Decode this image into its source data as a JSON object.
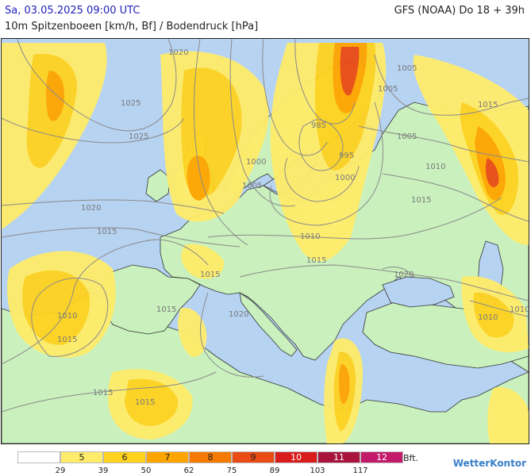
{
  "header": {
    "date": "Sa, 03.05.2025 09:00 UTC",
    "model": "GFS (NOAA) Do 18 + 39h",
    "subtitle": "10m Spitzenboeen [km/h, Bf] / Bodendruck [hPa]"
  },
  "colors": {
    "sea": "#b7d3f2",
    "land": "#c9f0bd",
    "calm": "#ffffff"
  },
  "legend": {
    "bins": [
      {
        "label": "",
        "color": "#ffffff"
      },
      {
        "label": "5",
        "color": "#ffec6a"
      },
      {
        "label": "6",
        "color": "#ffd21f"
      },
      {
        "label": "7",
        "color": "#ffa500"
      },
      {
        "label": "8",
        "color": "#f57a00"
      },
      {
        "label": "9",
        "color": "#ea4a14"
      },
      {
        "label": "10",
        "color": "#d91c1c"
      },
      {
        "label": "11",
        "color": "#a8143c"
      },
      {
        "label": "12",
        "color": "#c41a6a"
      }
    ],
    "values": [
      "29",
      "39",
      "50",
      "62",
      "75",
      "89",
      "103",
      "117"
    ],
    "unit": "Bft."
  },
  "isobars": [
    "1020",
    "1025",
    "1025",
    "1020",
    "1015",
    "1010",
    "1015",
    "1015",
    "1015",
    "1015",
    "985",
    "995",
    "1000",
    "1005",
    "1000",
    "1005",
    "1005",
    "1005",
    "1010",
    "1015",
    "1015",
    "1010",
    "1015",
    "1020",
    "1020",
    "1010",
    "1010",
    "1015"
  ],
  "brand": "WetterKontor"
}
